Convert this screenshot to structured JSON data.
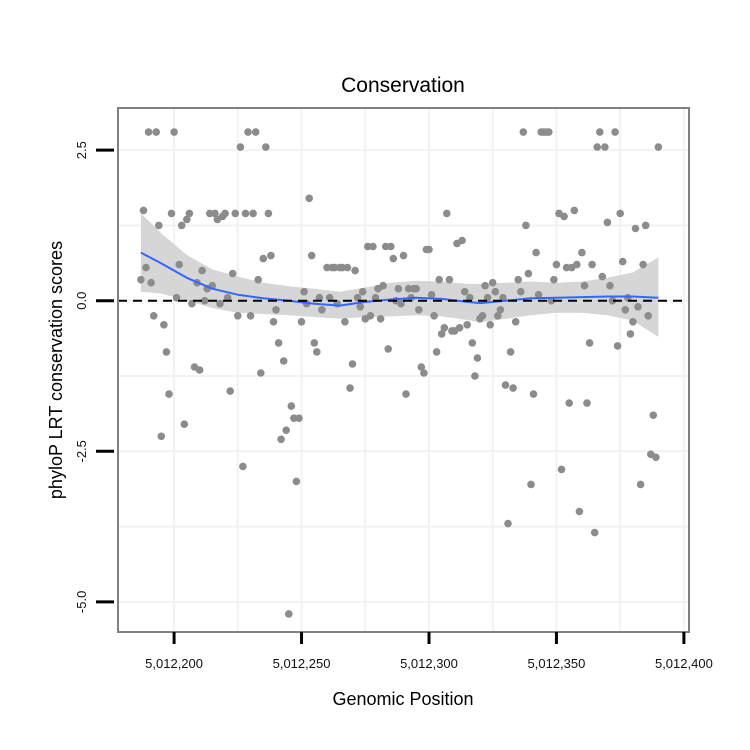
{
  "chart_data": {
    "type": "scatter",
    "title": "Conservation",
    "xlabel": "Genomic Position",
    "ylabel": "phyloP LRT conservation scores",
    "xlim": [
      5012178,
      5012402
    ],
    "ylim": [
      -5.5,
      3.2
    ],
    "x_ticks": [
      {
        "value": 5012200,
        "label": "5,012,200"
      },
      {
        "value": 5012250,
        "label": "5,012,250"
      },
      {
        "value": 5012300,
        "label": "5,012,300"
      },
      {
        "value": 5012350,
        "label": "5,012,350"
      },
      {
        "value": 5012400,
        "label": "5,012,400"
      }
    ],
    "y_ticks": [
      {
        "value": 2.5,
        "label": "2.5"
      },
      {
        "value": 0.0,
        "label": "0.0"
      },
      {
        "value": -2.5,
        "label": "-2.5"
      },
      {
        "value": -5.0,
        "label": "-5.0"
      }
    ],
    "reference_line": {
      "y": 0,
      "style": "dashed"
    },
    "colors": {
      "points": "#8c8c8c",
      "smooth": "#3366ff",
      "ribbon": "#d2d2d2",
      "grid": "#f2f2f2",
      "frame": "#808080"
    },
    "smooth": {
      "x": [
        5012187,
        5012195,
        5012205,
        5012215,
        5012225,
        5012235,
        5012245,
        5012255,
        5012265,
        5012275,
        5012285,
        5012295,
        5012305,
        5012315,
        5012320,
        5012330,
        5012340,
        5012350,
        5012360,
        5012370,
        5012380,
        5012390
      ],
      "y": [
        0.8,
        0.62,
        0.38,
        0.2,
        0.1,
        0.04,
        0.0,
        -0.05,
        -0.08,
        -0.02,
        0.02,
        0.05,
        0.03,
        -0.02,
        -0.04,
        0.0,
        0.04,
        0.05,
        0.06,
        0.07,
        0.07,
        0.05
      ],
      "ymin": [
        0.15,
        0.12,
        0.0,
        -0.12,
        -0.2,
        -0.22,
        -0.24,
        -0.27,
        -0.3,
        -0.27,
        -0.26,
        -0.24,
        -0.26,
        -0.32,
        -0.36,
        -0.3,
        -0.24,
        -0.2,
        -0.2,
        -0.24,
        -0.33,
        -0.6
      ],
      "ymax": [
        1.45,
        1.12,
        0.76,
        0.52,
        0.4,
        0.3,
        0.24,
        0.2,
        0.15,
        0.22,
        0.3,
        0.33,
        0.32,
        0.28,
        0.28,
        0.3,
        0.32,
        0.3,
        0.32,
        0.38,
        0.47,
        0.72
      ]
    },
    "points": [
      [
        5012187,
        0.35
      ],
      [
        5012188,
        1.5
      ],
      [
        5012189,
        0.55
      ],
      [
        5012190,
        2.8
      ],
      [
        5012191,
        0.3
      ],
      [
        5012192,
        -0.25
      ],
      [
        5012193,
        2.8
      ],
      [
        5012194,
        1.25
      ],
      [
        5012195,
        -2.25
      ],
      [
        5012196,
        -0.4
      ],
      [
        5012197,
        -0.85
      ],
      [
        5012198,
        -1.55
      ],
      [
        5012199,
        1.45
      ],
      [
        5012200,
        2.8
      ],
      [
        5012201,
        0.05
      ],
      [
        5012202,
        0.6
      ],
      [
        5012203,
        1.25
      ],
      [
        5012204,
        -2.05
      ],
      [
        5012205,
        1.35
      ],
      [
        5012206,
        1.45
      ],
      [
        5012207,
        -0.05
      ],
      [
        5012208,
        -1.1
      ],
      [
        5012209,
        0.3
      ],
      [
        5012210,
        -1.15
      ],
      [
        5012211,
        0.5
      ],
      [
        5012212,
        0.0
      ],
      [
        5012213,
        0.2
      ],
      [
        5012214,
        1.45
      ],
      [
        5012215,
        0.25
      ],
      [
        5012216,
        1.45
      ],
      [
        5012217,
        1.35
      ],
      [
        5012218,
        -0.05
      ],
      [
        5012219,
        1.4
      ],
      [
        5012220,
        1.45
      ],
      [
        5012221,
        0.05
      ],
      [
        5012222,
        -1.5
      ],
      [
        5012223,
        0.45
      ],
      [
        5012224,
        1.45
      ],
      [
        5012225,
        -0.25
      ],
      [
        5012226,
        2.55
      ],
      [
        5012227,
        -2.75
      ],
      [
        5012228,
        1.45
      ],
      [
        5012229,
        2.8
      ],
      [
        5012230,
        -0.25
      ],
      [
        5012231,
        1.45
      ],
      [
        5012232,
        2.8
      ],
      [
        5012233,
        0.35
      ],
      [
        5012234,
        -1.2
      ],
      [
        5012235,
        0.7
      ],
      [
        5012236,
        2.55
      ],
      [
        5012237,
        1.45
      ],
      [
        5012238,
        0.75
      ],
      [
        5012239,
        -0.35
      ],
      [
        5012240,
        -0.15
      ],
      [
        5012241,
        -0.7
      ],
      [
        5012242,
        -2.3
      ],
      [
        5012243,
        -1.0
      ],
      [
        5012244,
        -2.15
      ],
      [
        5012245,
        -5.2
      ],
      [
        5012246,
        -1.75
      ],
      [
        5012247,
        -1.95
      ],
      [
        5012248,
        -3.0
      ],
      [
        5012249,
        -1.95
      ],
      [
        5012250,
        -0.35
      ],
      [
        5012251,
        0.15
      ],
      [
        5012252,
        -0.05
      ],
      [
        5012253,
        1.7
      ],
      [
        5012254,
        0.75
      ],
      [
        5012255,
        -0.7
      ],
      [
        5012256,
        -0.85
      ],
      [
        5012257,
        0.05
      ],
      [
        5012258,
        -0.15
      ],
      [
        5012260,
        0.55
      ],
      [
        5012261,
        0.05
      ],
      [
        5012262,
        0.55
      ],
      [
        5012263,
        0.55
      ],
      [
        5012264,
        -0.05
      ],
      [
        5012265,
        0.55
      ],
      [
        5012266,
        0.55
      ],
      [
        5012267,
        -0.35
      ],
      [
        5012268,
        0.55
      ],
      [
        5012269,
        -1.45
      ],
      [
        5012270,
        -1.05
      ],
      [
        5012271,
        0.5
      ],
      [
        5012272,
        0.05
      ],
      [
        5012273,
        -0.1
      ],
      [
        5012274,
        0.15
      ],
      [
        5012275,
        -0.3
      ],
      [
        5012276,
        0.9
      ],
      [
        5012277,
        -0.25
      ],
      [
        5012278,
        0.9
      ],
      [
        5012279,
        0.05
      ],
      [
        5012280,
        0.2
      ],
      [
        5012281,
        -0.3
      ],
      [
        5012282,
        0.25
      ],
      [
        5012283,
        0.9
      ],
      [
        5012284,
        -0.8
      ],
      [
        5012285,
        0.9
      ],
      [
        5012286,
        0.7
      ],
      [
        5012287,
        0.0
      ],
      [
        5012288,
        0.2
      ],
      [
        5012289,
        -0.05
      ],
      [
        5012290,
        0.75
      ],
      [
        5012291,
        -1.55
      ],
      [
        5012292,
        0.2
      ],
      [
        5012293,
        0.05
      ],
      [
        5012294,
        0.2
      ],
      [
        5012295,
        0.2
      ],
      [
        5012296,
        -0.15
      ],
      [
        5012297,
        -1.1
      ],
      [
        5012298,
        -1.2
      ],
      [
        5012299,
        0.85
      ],
      [
        5012300,
        0.85
      ],
      [
        5012301,
        0.1
      ],
      [
        5012302,
        -0.25
      ],
      [
        5012303,
        -0.85
      ],
      [
        5012304,
        0.35
      ],
      [
        5012305,
        -0.55
      ],
      [
        5012306,
        -0.45
      ],
      [
        5012307,
        1.45
      ],
      [
        5012308,
        0.35
      ],
      [
        5012309,
        -0.5
      ],
      [
        5012310,
        -0.5
      ],
      [
        5012311,
        0.95
      ],
      [
        5012312,
        -0.45
      ],
      [
        5012313,
        1.0
      ],
      [
        5012314,
        0.15
      ],
      [
        5012315,
        -0.4
      ],
      [
        5012316,
        0.05
      ],
      [
        5012317,
        -0.7
      ],
      [
        5012318,
        -1.25
      ],
      [
        5012319,
        -0.95
      ],
      [
        5012320,
        -0.3
      ],
      [
        5012321,
        -0.25
      ],
      [
        5012322,
        0.25
      ],
      [
        5012323,
        0.05
      ],
      [
        5012324,
        -0.4
      ],
      [
        5012325,
        0.3
      ],
      [
        5012326,
        0.15
      ],
      [
        5012327,
        -0.25
      ],
      [
        5012328,
        -0.15
      ],
      [
        5012329,
        0.05
      ],
      [
        5012330,
        -1.4
      ],
      [
        5012331,
        -3.7
      ],
      [
        5012332,
        -0.85
      ],
      [
        5012333,
        -1.45
      ],
      [
        5012334,
        -0.35
      ],
      [
        5012335,
        0.35
      ],
      [
        5012336,
        0.15
      ],
      [
        5012337,
        2.8
      ],
      [
        5012338,
        1.25
      ],
      [
        5012339,
        0.45
      ],
      [
        5012340,
        -3.05
      ],
      [
        5012341,
        -1.55
      ],
      [
        5012342,
        0.8
      ],
      [
        5012343,
        0.1
      ],
      [
        5012344,
        2.8
      ],
      [
        5012345,
        2.8
      ],
      [
        5012346,
        2.8
      ],
      [
        5012347,
        2.8
      ],
      [
        5012348,
        0.0
      ],
      [
        5012349,
        0.35
      ],
      [
        5012350,
        0.6
      ],
      [
        5012351,
        1.45
      ],
      [
        5012352,
        -2.8
      ],
      [
        5012353,
        1.4
      ],
      [
        5012354,
        0.55
      ],
      [
        5012355,
        -1.7
      ],
      [
        5012356,
        0.55
      ],
      [
        5012357,
        1.5
      ],
      [
        5012358,
        0.6
      ],
      [
        5012359,
        -3.5
      ],
      [
        5012360,
        0.8
      ],
      [
        5012361,
        0.25
      ],
      [
        5012362,
        -1.7
      ],
      [
        5012363,
        -0.7
      ],
      [
        5012364,
        0.6
      ],
      [
        5012365,
        -3.85
      ],
      [
        5012366,
        2.55
      ],
      [
        5012367,
        2.8
      ],
      [
        5012368,
        0.4
      ],
      [
        5012369,
        2.55
      ],
      [
        5012370,
        1.3
      ],
      [
        5012371,
        0.25
      ],
      [
        5012372,
        0.0
      ],
      [
        5012373,
        2.8
      ],
      [
        5012374,
        -0.75
      ],
      [
        5012375,
        1.45
      ],
      [
        5012376,
        0.65
      ],
      [
        5012377,
        -0.15
      ],
      [
        5012378,
        0.05
      ],
      [
        5012379,
        -0.55
      ],
      [
        5012380,
        -0.35
      ],
      [
        5012381,
        1.2
      ],
      [
        5012382,
        -0.1
      ],
      [
        5012383,
        -3.05
      ],
      [
        5012384,
        0.6
      ],
      [
        5012385,
        1.25
      ],
      [
        5012386,
        -0.25
      ],
      [
        5012387,
        -2.55
      ],
      [
        5012388,
        -1.9
      ],
      [
        5012389,
        -2.6
      ],
      [
        5012390,
        2.55
      ]
    ]
  }
}
